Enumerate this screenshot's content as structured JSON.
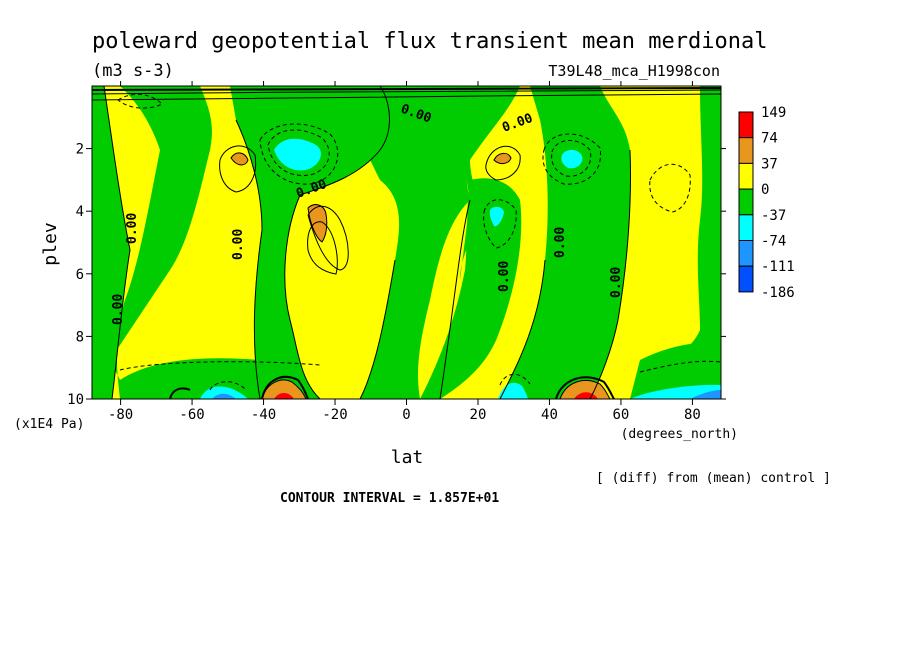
{
  "chart_data": {
    "type": "heatmap",
    "title": "poleward geopotential flux transient mean merdional",
    "units": "(m3 s-3)",
    "run_label": "T39L48_mca_H1998con",
    "xlabel": "lat",
    "x_units": "(degrees_north)",
    "ylabel": "plev",
    "y_units": "(x1E4 Pa)",
    "note": "[ (diff) from (mean) control ]",
    "contour_interval": "CONTOUR INTERVAL = 1.857E+01",
    "x_ticks": [
      "-80",
      "-60",
      "-40",
      "-20",
      "0",
      "20",
      "40",
      "60",
      "80"
    ],
    "y_ticks": [
      "2",
      "4",
      "6",
      "8",
      "10"
    ],
    "xlim": [
      -88,
      88
    ],
    "ylim": [
      10,
      0
    ],
    "zero_label": "0.00",
    "colorbar": {
      "labels": [
        "149",
        "74",
        "37",
        "0",
        "-37",
        "-74",
        "-111",
        "-186"
      ],
      "colors": [
        "#ff0000",
        "#e8961e",
        "#ffff00",
        "#00cc00",
        "#00ffff",
        "#1e96ff",
        "#0050ff"
      ]
    },
    "regions": [
      {
        "level": "-37 to 0",
        "lat_range": [
          -88,
          -82
        ],
        "plev_range": [
          0.3,
          10
        ]
      },
      {
        "level": "0 to 37",
        "lat_range": [
          -82,
          -60
        ],
        "plev_range": [
          0.3,
          8
        ]
      },
      {
        "level": "-37 to 0",
        "lat_range": [
          -62,
          -40
        ],
        "plev_range": [
          0.3,
          10
        ]
      },
      {
        "level": "0 to 37",
        "lat_range": [
          -52,
          -40
        ],
        "plev_range": [
          0.3,
          8.5
        ]
      },
      {
        "level": "37 to 74",
        "lat_range": [
          -47,
          -44
        ],
        "plev_range": [
          2.2,
          2.8
        ]
      },
      {
        "level": "-37 to 0",
        "lat_range": [
          -40,
          -25
        ],
        "plev_range": [
          0.3,
          9.5
        ]
      },
      {
        "level": "-74 to -37",
        "lat_range": [
          -37,
          -28
        ],
        "plev_range": [
          1.8,
          2.7
        ]
      },
      {
        "level": "0 to 37",
        "lat_range": [
          -36,
          -6
        ],
        "plev_range": [
          3.4,
          10
        ]
      },
      {
        "level": "37 to 74",
        "lat_range": [
          -28,
          -25
        ],
        "plev_range": [
          4.0,
          5.0
        ]
      },
      {
        "level": "-37 to 0",
        "lat_range": [
          -14,
          8
        ],
        "plev_range": [
          0.3,
          10
        ]
      },
      {
        "level": "0 to 37",
        "lat_range": [
          8,
          40
        ],
        "plev_range": [
          0.3,
          10
        ]
      },
      {
        "level": "37 to 74",
        "lat_range": [
          26,
          29
        ],
        "plev_range": [
          2.2,
          2.8
        ]
      },
      {
        "level": "-74 to -37",
        "lat_range": [
          27,
          29
        ],
        "plev_range": [
          3.8,
          4.4
        ]
      },
      {
        "level": "-37 to 0",
        "lat_range": [
          36,
          50
        ],
        "plev_range": [
          0.3,
          10
        ]
      },
      {
        "level": "-74 to -37",
        "lat_range": [
          44,
          48
        ],
        "plev_range": [
          2.2,
          2.9
        ]
      },
      {
        "level": "0 to 37",
        "lat_range": [
          50,
          70
        ],
        "plev_range": [
          0.3,
          9
        ]
      },
      {
        "level": "-37 to 0",
        "lat_range": [
          70,
          88
        ],
        "plev_range": [
          0.3,
          10
        ]
      },
      {
        "level": "74 to 149",
        "lat_range": [
          -38,
          -30
        ],
        "plev_range": [
          9.6,
          10
        ]
      },
      {
        "level": "74 to 149",
        "lat_range": [
          42,
          52
        ],
        "plev_range": [
          9.6,
          10
        ]
      },
      {
        "level": "-111 to -74",
        "lat_range": [
          -56,
          -48
        ],
        "plev_range": [
          9.6,
          10
        ]
      },
      {
        "level": "-111 to -74",
        "lat_range": [
          74,
          88
        ],
        "plev_range": [
          9.6,
          10
        ]
      }
    ]
  }
}
